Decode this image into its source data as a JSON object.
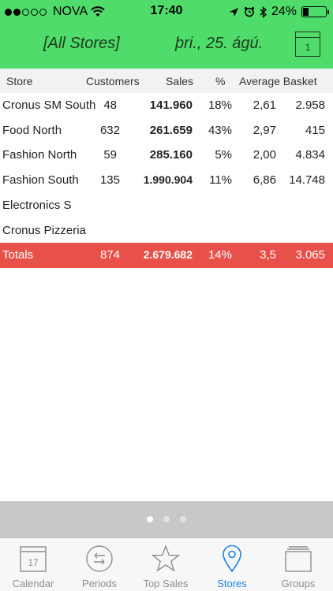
{
  "status_bar": {
    "carrier": "NOVA",
    "time": "17:40",
    "battery": "24%",
    "signal_full": 2,
    "signal_total": 5
  },
  "header": {
    "store_filter": "[All Stores]",
    "date": "þri., 25. ágú.",
    "calendar_day": "1"
  },
  "table": {
    "columns": [
      "Store",
      "Customers",
      "Sales",
      "%",
      "Average Basket"
    ],
    "rows": [
      {
        "store": "Cronus SM South",
        "customers": "48",
        "sales": "141.960",
        "pct": "18%",
        "avg": "2,61",
        "basket": "2.958"
      },
      {
        "store": "Food North",
        "customers": "632",
        "sales": "261.659",
        "pct": "43%",
        "avg": "2,97",
        "basket": "415"
      },
      {
        "store": "Fashion North",
        "customers": "59",
        "sales": "285.160",
        "pct": "5%",
        "avg": "2,00",
        "basket": "4.834"
      },
      {
        "store": "Fashion South",
        "customers": "135",
        "sales": "1.990.904",
        "pct": "11%",
        "avg": "6,86",
        "basket": "14.748"
      },
      {
        "store": "Electronics S",
        "customers": "",
        "sales": "",
        "pct": "",
        "avg": "",
        "basket": ""
      },
      {
        "store": "Cronus Pizzeria",
        "customers": "",
        "sales": "",
        "pct": "",
        "avg": "",
        "basket": ""
      }
    ],
    "totals": {
      "label": "Totals",
      "customers": "874",
      "sales": "2.679.682",
      "pct": "14%",
      "avg": "3,5",
      "basket": "3.065"
    }
  },
  "pager": {
    "pages": 3,
    "active": 0
  },
  "tabs": [
    {
      "label": "Calendar",
      "icon": "calendar-icon",
      "icon_text": "17"
    },
    {
      "label": "Periods",
      "icon": "periods-icon"
    },
    {
      "label": "Top Sales",
      "icon": "star-icon"
    },
    {
      "label": "Stores",
      "icon": "location-pin-icon",
      "active": true
    },
    {
      "label": "Groups",
      "icon": "groups-icon"
    }
  ],
  "colors": {
    "header_green": "#4fdc6a",
    "totals_red": "#e8514a",
    "active_tab_blue": "#1a82e8"
  }
}
